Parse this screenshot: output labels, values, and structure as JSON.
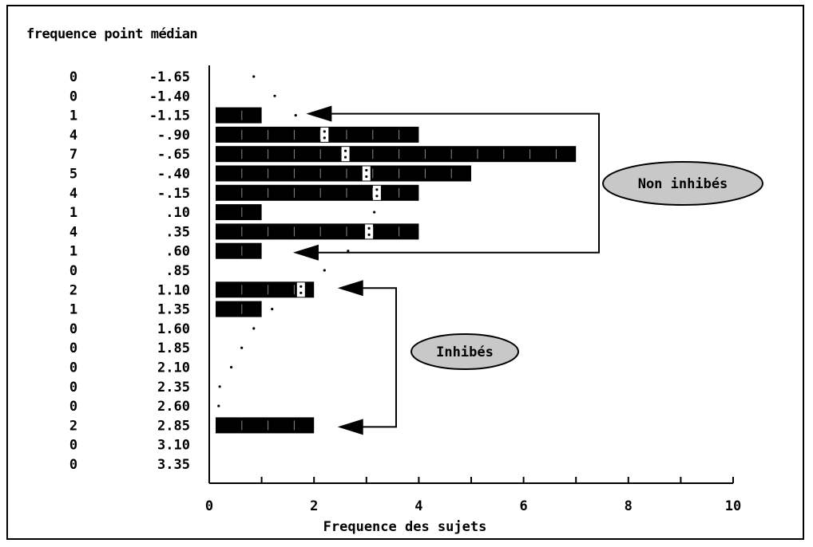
{
  "title": "frequence point médian",
  "chart_data": {
    "type": "bar",
    "orientation": "horizontal",
    "title": "frequence point médian",
    "xlabel": "Frequence des sujets",
    "ylabel": "",
    "xlim": [
      0,
      10
    ],
    "x_ticks": [
      "0",
      "2",
      "4",
      "6",
      "8",
      "10"
    ],
    "categories": [
      "-1.65",
      "-1.40",
      "-1.15",
      "-.90",
      "-.65",
      "-.40",
      "-.15",
      ".10",
      ".35",
      ".60",
      ".85",
      "1.10",
      "1.35",
      "1.60",
      "1.85",
      "2.10",
      "2.35",
      "2.60",
      "2.85",
      "3.10",
      "3.35"
    ],
    "frequencies": [
      "0",
      "0",
      "1",
      "4",
      "7",
      "5",
      "4",
      "1",
      "4",
      "1",
      "0",
      "2",
      "1",
      "0",
      "0",
      "0",
      "0",
      "0",
      "2",
      "0",
      "0"
    ],
    "values": [
      0,
      0,
      1,
      4,
      7,
      5,
      4,
      1,
      4,
      1,
      0,
      2,
      1,
      0,
      0,
      0,
      0,
      0,
      2,
      0,
      0
    ],
    "expected_curve": [
      0.85,
      1.25,
      1.65,
      2.2,
      2.6,
      3.0,
      3.2,
      3.15,
      3.05,
      2.65,
      2.2,
      1.75,
      1.2,
      0.85,
      0.62,
      0.42,
      0.2,
      0.18,
      0,
      0,
      0
    ],
    "annotations": [
      {
        "label": "Non inhibés",
        "rows": [
          "-1.15",
          ".60"
        ]
      },
      {
        "label": "Inhibés",
        "rows": [
          "1.10",
          "2.85"
        ]
      }
    ],
    "fill_color": "#000000",
    "label_fill_color": "#c8c8c8",
    "grid": false
  }
}
